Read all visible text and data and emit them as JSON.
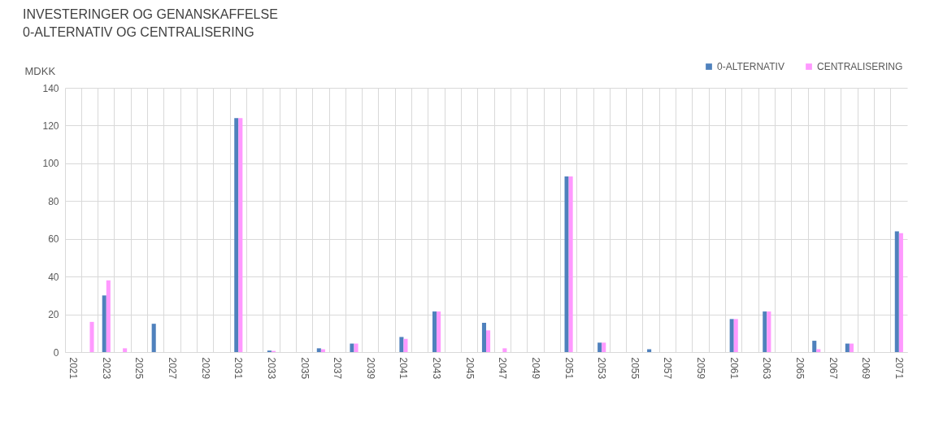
{
  "chart_data": {
    "type": "bar",
    "title": "INVESTERINGER OG GENANSKAFFELSE",
    "subtitle": "0-ALTERNATIV OG CENTRALISERING",
    "ylabel": "MDKK",
    "categories": [
      "2021",
      null,
      "2023",
      null,
      "2025",
      null,
      "2027",
      null,
      "2029",
      null,
      "2031",
      null,
      "2033",
      null,
      "2035",
      null,
      "2037",
      null,
      "2039",
      null,
      "2041",
      null,
      "2043",
      null,
      "2045",
      null,
      "2047",
      null,
      "2049",
      null,
      "2051",
      null,
      "2053",
      null,
      "2055",
      null,
      "2057",
      null,
      "2059",
      null,
      "2061",
      null,
      "2063",
      null,
      "2065",
      null,
      "2067",
      null,
      "2069",
      null,
      "2071"
    ],
    "series": [
      {
        "name": "0-ALTERNATIV",
        "color": "#4f81bd",
        "values": [
          null,
          null,
          30,
          null,
          null,
          15,
          null,
          null,
          null,
          null,
          124,
          null,
          0.8,
          null,
          null,
          2,
          null,
          4.5,
          null,
          null,
          8,
          null,
          21.5,
          null,
          null,
          15.5,
          null,
          null,
          null,
          null,
          93,
          null,
          5,
          null,
          null,
          1.5,
          null,
          null,
          null,
          null,
          17.5,
          null,
          21.5,
          null,
          null,
          6,
          null,
          4.5,
          null,
          null,
          64
        ]
      },
      {
        "name": "CENTRALISERING",
        "color": "#ff99ff",
        "values": [
          null,
          16,
          38,
          2,
          null,
          null,
          null,
          null,
          null,
          null,
          124,
          null,
          0.6,
          null,
          null,
          1.5,
          null,
          4.5,
          null,
          null,
          7,
          null,
          21.5,
          null,
          null,
          11.5,
          2,
          null,
          null,
          null,
          93,
          null,
          5,
          null,
          null,
          null,
          null,
          null,
          null,
          null,
          17.5,
          null,
          21.5,
          null,
          null,
          1.5,
          null,
          4.5,
          null,
          null,
          63
        ]
      }
    ],
    "ylim": [
      0,
      140
    ],
    "yticks": [
      0,
      20,
      40,
      60,
      80,
      100,
      120,
      140
    ],
    "grid": true,
    "legend": "top right"
  }
}
